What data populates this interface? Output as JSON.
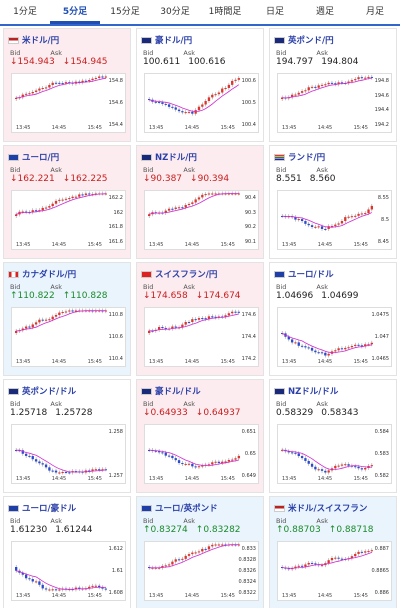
{
  "tabs": [
    {
      "label": "1分足",
      "active": false
    },
    {
      "label": "5分足",
      "active": true
    },
    {
      "label": "15分足",
      "active": false
    },
    {
      "label": "30分足",
      "active": false
    },
    {
      "label": "1時間足",
      "active": false
    },
    {
      "label": "日足",
      "active": false
    },
    {
      "label": "週足",
      "active": false
    },
    {
      "label": "月足",
      "active": false
    }
  ],
  "labels": {
    "bid": "Bid",
    "ask": "Ask"
  },
  "colors": {
    "down": "#c81e1e",
    "up": "#1a8a2a",
    "bull": "#e0342b",
    "bear": "#2a4bd1",
    "ma": "#d12ad1"
  },
  "cards": [
    {
      "pair": "米ドル/円",
      "bid": "154.943",
      "ask": "154.945",
      "dir": "down",
      "bg": "up",
      "flag": "us",
      "yticks": [
        "154.8",
        "154.6",
        "154.4"
      ],
      "xticks": [
        "13:45",
        "14:45",
        "15:45"
      ],
      "trend": "up"
    },
    {
      "pair": "豪ドル/円",
      "bid": "100.611",
      "ask": "100.616",
      "dir": "none",
      "bg": "neutral",
      "flag": "au",
      "yticks": [
        "100.6",
        "100.5",
        "100.4"
      ],
      "xticks": [
        "13:45",
        "14:45",
        "15:45"
      ],
      "trend": "vup"
    },
    {
      "pair": "英ポンド/円",
      "bid": "194.797",
      "ask": "194.804",
      "dir": "none",
      "bg": "neutral",
      "flag": "uk",
      "yticks": [
        "194.8",
        "194.6",
        "194.4",
        "194.2"
      ],
      "xticks": [
        "13:45",
        "14:45",
        "15:45"
      ],
      "trend": "up"
    },
    {
      "pair": "ユーロ/円",
      "bid": "162.221",
      "ask": "162.225",
      "dir": "down",
      "bg": "up",
      "flag": "eu",
      "yticks": [
        "162.2",
        "162",
        "161.8",
        "161.6"
      ],
      "xticks": [
        "13:45",
        "14:45",
        "15:45"
      ],
      "trend": "up"
    },
    {
      "pair": "NZドル/円",
      "bid": "90.387",
      "ask": "90.394",
      "dir": "down",
      "bg": "up",
      "flag": "nz",
      "yticks": [
        "90.4",
        "90.3",
        "90.2",
        "90.1"
      ],
      "xticks": [
        "13:45",
        "14:45",
        "15:45"
      ],
      "trend": "up"
    },
    {
      "pair": "ランド/円",
      "bid": "8.551",
      "ask": "8.560",
      "dir": "none",
      "bg": "neutral",
      "flag": "za",
      "yticks": [
        "8.55",
        "8.5",
        "8.45"
      ],
      "xticks": [
        "13:45",
        "14:45",
        "15:45"
      ],
      "trend": "vup"
    },
    {
      "pair": "カナダドル/円",
      "bid": "110.822",
      "ask": "110.828",
      "dir": "up",
      "bg": "blue",
      "flag": "ca",
      "yticks": [
        "110.8",
        "110.6",
        "110.4"
      ],
      "xticks": [
        "13:45",
        "14:45",
        "15:45"
      ],
      "trend": "up"
    },
    {
      "pair": "スイスフラン/円",
      "bid": "174.658",
      "ask": "174.674",
      "dir": "down",
      "bg": "up",
      "flag": "ch",
      "yticks": [
        "174.6",
        "174.4",
        "174.2"
      ],
      "xticks": [
        "13:45",
        "14:45",
        "15:45"
      ],
      "trend": "up"
    },
    {
      "pair": "ユーロ/ドル",
      "bid": "1.04696",
      "ask": "1.04699",
      "dir": "none",
      "bg": "neutral",
      "flag": "eu",
      "yticks": [
        "1.0475",
        "1.047",
        "1.0465"
      ],
      "xticks": [
        "13:45",
        "14:45",
        "15:45"
      ],
      "trend": "down"
    },
    {
      "pair": "英ポンド/ドル",
      "bid": "1.25718",
      "ask": "1.25728",
      "dir": "none",
      "bg": "neutral",
      "flag": "uk",
      "yticks": [
        "1.258",
        "1.257"
      ],
      "xticks": [
        "13:45",
        "14:45",
        "15:45"
      ],
      "trend": "down"
    },
    {
      "pair": "豪ドル/ドル",
      "bid": "0.64933",
      "ask": "0.64937",
      "dir": "down",
      "bg": "up",
      "flag": "au",
      "yticks": [
        "0.651",
        "0.65",
        "0.649"
      ],
      "xticks": [
        "13:45",
        "14:45",
        "15:45"
      ],
      "trend": "down"
    },
    {
      "pair": "NZドル/ドル",
      "bid": "0.58329",
      "ask": "0.58343",
      "dir": "none",
      "bg": "neutral",
      "flag": "nz",
      "yticks": [
        "0.584",
        "0.583",
        "0.582"
      ],
      "xticks": [
        "13:45",
        "14:45",
        "15:45"
      ],
      "trend": "down"
    },
    {
      "pair": "ユーロ/豪ドル",
      "bid": "1.61230",
      "ask": "1.61244",
      "dir": "none",
      "bg": "neutral",
      "flag": "eu",
      "yticks": [
        "1.612",
        "1.61",
        "1.608"
      ],
      "xticks": [
        "13:45",
        "14:45",
        "15:45"
      ],
      "trend": "down"
    },
    {
      "pair": "ユーロ/英ポンド",
      "bid": "0.83274",
      "ask": "0.83282",
      "dir": "up",
      "bg": "blue",
      "flag": "eu",
      "yticks": [
        "0.833",
        "0.8328",
        "0.8326",
        "0.8324",
        "0.8322"
      ],
      "xticks": [
        "13:45",
        "14:45",
        "15:45"
      ],
      "trend": "up"
    },
    {
      "pair": "米ドル/スイスフラン",
      "bid": "0.88703",
      "ask": "0.88718",
      "dir": "up",
      "bg": "blue",
      "flag": "us",
      "yticks": [
        "0.887",
        "0.8865",
        "0.886"
      ],
      "xticks": [
        "13:45",
        "14:45",
        "15:45"
      ],
      "trend": "up"
    }
  ]
}
